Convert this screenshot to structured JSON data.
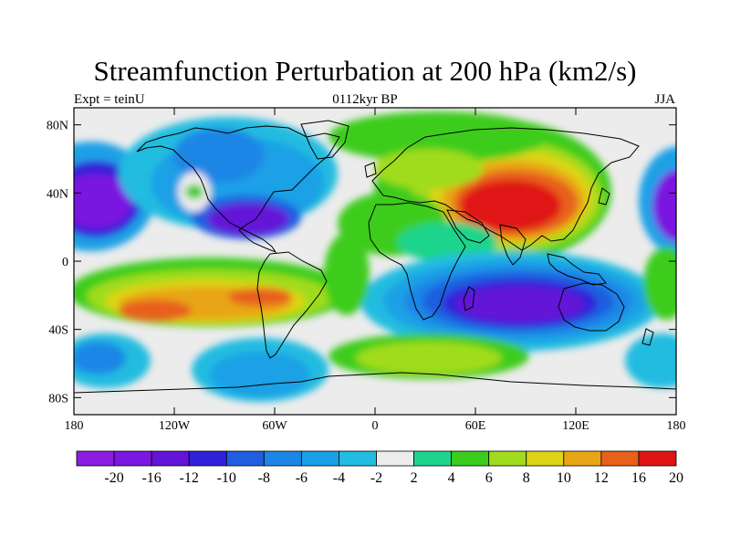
{
  "title": "Streamfunction Perturbation at 200 hPa (km2/s)",
  "subtitle_left": "Expt = teinU",
  "subtitle_center": "0112kyr BP",
  "subtitle_right": "JJA",
  "lat_ticks": [
    {
      "value": 80,
      "label": "80N"
    },
    {
      "value": 40,
      "label": "40N"
    },
    {
      "value": 0,
      "label": "0"
    },
    {
      "value": -40,
      "label": "40S"
    },
    {
      "value": -80,
      "label": "80S"
    }
  ],
  "lon_ticks": [
    {
      "value": -180,
      "label": "180"
    },
    {
      "value": -120,
      "label": "120W"
    },
    {
      "value": -60,
      "label": "60W"
    },
    {
      "value": 0,
      "label": "0"
    },
    {
      "value": 60,
      "label": "60E"
    },
    {
      "value": 120,
      "label": "120E"
    },
    {
      "value": 180,
      "label": "180"
    }
  ],
  "colorbar": {
    "levels": [
      "-20",
      "-16",
      "-12",
      "-10",
      "-8",
      "-6",
      "-4",
      "-2",
      "2",
      "4",
      "6",
      "8",
      "10",
      "12",
      "16",
      "20"
    ],
    "colors": [
      "#8a1de0",
      "#7a17e0",
      "#6414d8",
      "#3220d8",
      "#1f5ee0",
      "#1d86e6",
      "#1aa0e6",
      "#22bce0",
      "#ececec",
      "#1ed48c",
      "#3ccc1e",
      "#a0dc1e",
      "#dcd414",
      "#e8a616",
      "#e8601a",
      "#e01414"
    ]
  },
  "field": {
    "units": "km2/s",
    "features": [
      {
        "lon": 80,
        "lat": 34,
        "value": 24
      },
      {
        "lon": 90,
        "lat": -28,
        "value": -20
      },
      {
        "lon": -165,
        "lat": 38,
        "value": -18
      },
      {
        "lon": 178,
        "lat": 38,
        "value": -18
      },
      {
        "lon": -75,
        "lat": 25,
        "value": -16
      },
      {
        "lon": -140,
        "lat": -25,
        "value": 14
      },
      {
        "lon": -90,
        "lat": -20,
        "value": 15
      },
      {
        "lon": 20,
        "lat": -55,
        "value": 8
      },
      {
        "lon": -65,
        "lat": -65,
        "value": -5
      },
      {
        "lon": -175,
        "lat": -55,
        "value": -7
      }
    ]
  }
}
